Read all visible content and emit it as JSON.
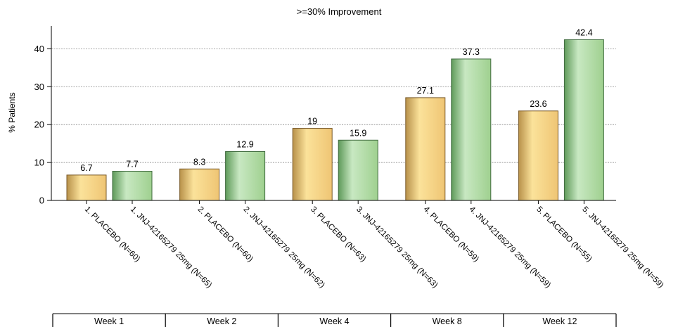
{
  "chart_data": {
    "type": "bar",
    "title": ">=30% Improvement",
    "ylabel": "% Patients",
    "xlabel": "",
    "ylim": [
      0,
      46
    ],
    "yticks": [
      0,
      10,
      20,
      30,
      40
    ],
    "grid": true,
    "categories": [
      "1. PLACEBO (N=60)",
      "1. JNJ-42165279 25mg (N=65)",
      "2. PLACEBO (N=60)",
      "2. JNJ-42165279 25mg (N=62)",
      "3. PLACEBO (N=63)",
      "3. JNJ-42165279 25mg (N=63)",
      "4. PLACEBO (N=59)",
      "4. JNJ-42165279 25mg (N=59)",
      "5. PLACEBO (N=55)",
      "5. JNJ-42165279 25mg (N=59)"
    ],
    "values": [
      6.7,
      7.7,
      8.3,
      12.9,
      19,
      15.9,
      27.1,
      37.3,
      23.6,
      42.4
    ],
    "value_labels": [
      "6.7",
      "7.7",
      "8.3",
      "12.9",
      "19",
      "15.9",
      "27.1",
      "37.3",
      "23.6",
      "42.4"
    ],
    "bar_groups": [
      "placebo",
      "drug",
      "placebo",
      "drug",
      "placebo",
      "drug",
      "placebo",
      "drug",
      "placebo",
      "drug"
    ],
    "weeks": [
      "Week 1",
      "Week 2",
      "Week 4",
      "Week 8",
      "Week 12"
    ],
    "colors": {
      "placebo_light": "#fbe29a",
      "placebo_mid": "#efc574",
      "placebo_dark": "#b8914a",
      "placebo_edge": "#7a5a28",
      "drug_light": "#c8e8c2",
      "drug_mid": "#9fd08f",
      "drug_dark": "#5f9a5a",
      "drug_edge": "#3f6a3e",
      "grid": "#888888",
      "axis": "#000000"
    }
  }
}
